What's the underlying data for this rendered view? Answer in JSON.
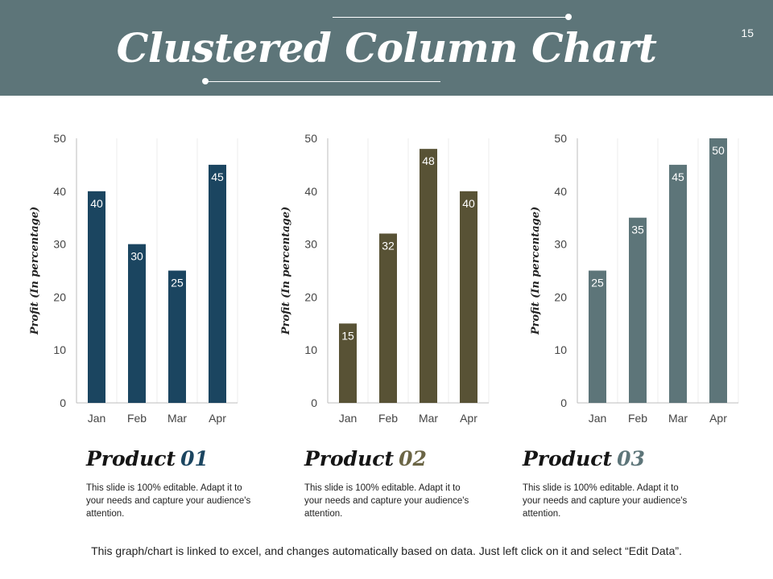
{
  "header": {
    "title": "Clustered Column Chart",
    "page_number": "15",
    "background": "#5d7579"
  },
  "chart_data": [
    {
      "type": "bar",
      "categories": [
        "Jan",
        "Feb",
        "Mar",
        "Apr"
      ],
      "values": [
        40,
        30,
        25,
        45
      ],
      "ylabel": "Profit  (In percentage)",
      "ylim": [
        0,
        50
      ],
      "yticks": [
        0,
        10,
        20,
        30,
        40,
        50
      ],
      "color": "#1b4560"
    },
    {
      "type": "bar",
      "categories": [
        "Jan",
        "Feb",
        "Mar",
        "Apr"
      ],
      "values": [
        15,
        32,
        48,
        40
      ],
      "ylabel": "Profit  (In percentage)",
      "ylim": [
        0,
        50
      ],
      "yticks": [
        0,
        10,
        20,
        30,
        40,
        50
      ],
      "color": "#585235"
    },
    {
      "type": "bar",
      "categories": [
        "Jan",
        "Feb",
        "Mar",
        "Apr"
      ],
      "values": [
        25,
        35,
        45,
        50
      ],
      "ylabel": "Profit  (In percentage)",
      "ylim": [
        0,
        50
      ],
      "yticks": [
        0,
        10,
        20,
        30,
        40,
        50
      ],
      "color": "#5d7579"
    }
  ],
  "products": [
    {
      "label": "Product",
      "number": "01",
      "number_color": "#1b4560",
      "description": "This slide is 100% editable. Adapt it to your needs and capture your audience's attention."
    },
    {
      "label": "Product",
      "number": "02",
      "number_color": "#6b6545",
      "description": "This slide is 100% editable. Adapt it to your needs and capture your audience's attention."
    },
    {
      "label": "Product",
      "number": "03",
      "number_color": "#5d7579",
      "description": "This slide is 100% editable. Adapt it to your needs and capture your audience's attention."
    }
  ],
  "footer": {
    "note": "This graph/chart is linked to excel, and changes automatically  based on data. Just left click on it and select “Edit Data”."
  }
}
